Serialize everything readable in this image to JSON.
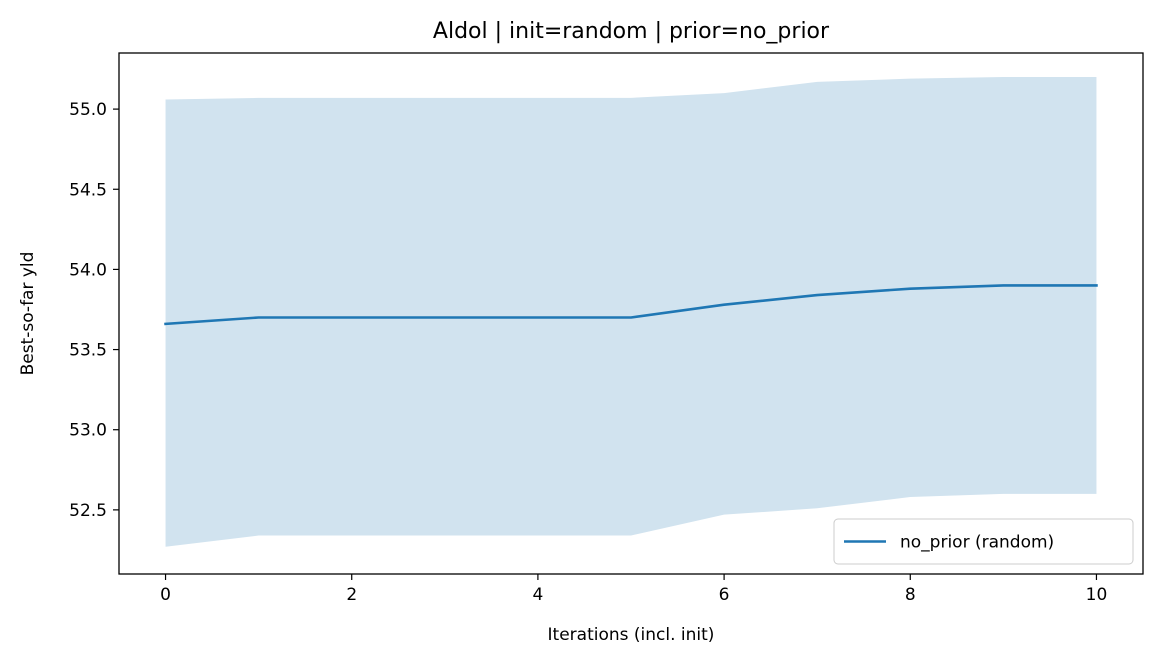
{
  "chart_data": {
    "type": "line",
    "title": "Aldol | init=random | prior=no_prior",
    "xlabel": "Iterations (incl. init)",
    "ylabel": "Best-so-far yld",
    "xlim": [
      -0.5,
      10.5
    ],
    "ylim": [
      52.1,
      55.35
    ],
    "xticks": [
      0,
      2,
      4,
      6,
      8,
      10
    ],
    "yticks": [
      52.5,
      53.0,
      53.5,
      54.0,
      54.5,
      55.0
    ],
    "xtick_labels": [
      "0",
      "2",
      "4",
      "6",
      "8",
      "10"
    ],
    "ytick_labels": [
      "52.5",
      "53.0",
      "53.5",
      "54.0",
      "54.5",
      "55.0"
    ],
    "grid": false,
    "legend_position": "lower-right",
    "x": [
      0,
      1,
      2,
      3,
      4,
      5,
      6,
      7,
      8,
      9,
      10
    ],
    "series": [
      {
        "name": "no_prior (random)",
        "color": "#1f77b4",
        "band_color": "#d1e3ef",
        "values": [
          53.66,
          53.7,
          53.7,
          53.7,
          53.7,
          53.7,
          53.78,
          53.84,
          53.88,
          53.9,
          53.9
        ],
        "upper": [
          55.06,
          55.07,
          55.07,
          55.07,
          55.07,
          55.07,
          55.1,
          55.17,
          55.19,
          55.2,
          55.2
        ],
        "lower": [
          52.27,
          52.34,
          52.34,
          52.34,
          52.34,
          52.34,
          52.47,
          52.51,
          52.58,
          52.6,
          52.6
        ]
      }
    ]
  }
}
